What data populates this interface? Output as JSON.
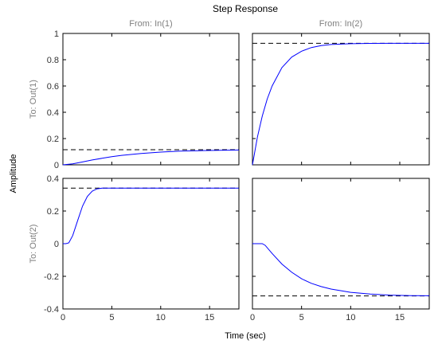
{
  "chart_data": {
    "type": "line",
    "title": "Step Response",
    "xlabel": "Time (sec)",
    "ylabel": "Amplitude",
    "xlim": [
      0,
      18
    ],
    "x_ticks": [
      "0",
      "5",
      "10",
      "15"
    ],
    "input_labels": [
      "From: In(1)",
      "From: In(2)"
    ],
    "output_labels": [
      "To: Out(1)",
      "To: Out(2)"
    ],
    "rows": [
      {
        "ylim": [
          0,
          1
        ],
        "y_ticks": [
          "0",
          "0.2",
          "0.4",
          "0.6",
          "0.8",
          "1"
        ]
      },
      {
        "ylim": [
          -0.4,
          0.4
        ],
        "y_ticks": [
          "-0.4",
          "-0.2",
          "0",
          "0.2",
          "0.4"
        ]
      }
    ],
    "line_color": "#0000ff",
    "steady_state_color": "#000000",
    "grid": false,
    "panels": [
      {
        "row": 0,
        "col": 0,
        "steady_state": 0.115,
        "x": [
          0,
          1,
          2,
          3,
          4,
          5,
          6,
          8,
          10,
          12,
          14,
          16,
          18
        ],
        "y": [
          0,
          0.007,
          0.022,
          0.037,
          0.05,
          0.062,
          0.072,
          0.086,
          0.097,
          0.104,
          0.108,
          0.111,
          0.113
        ]
      },
      {
        "row": 0,
        "col": 1,
        "steady_state": 0.925,
        "x": [
          0,
          0.5,
          1,
          1.5,
          2,
          3,
          4,
          5,
          6,
          7,
          8,
          10,
          12,
          14,
          16,
          18
        ],
        "y": [
          0,
          0.21,
          0.37,
          0.5,
          0.6,
          0.74,
          0.82,
          0.865,
          0.893,
          0.908,
          0.916,
          0.922,
          0.924,
          0.925,
          0.925,
          0.925
        ]
      },
      {
        "row": 1,
        "col": 0,
        "steady_state": 0.34,
        "x": [
          0,
          0.3,
          0.6,
          1,
          1.5,
          2,
          2.5,
          3,
          3.5,
          4,
          5,
          6,
          8,
          10,
          12,
          14,
          16,
          18
        ],
        "y": [
          0,
          0,
          0.005,
          0.05,
          0.14,
          0.23,
          0.29,
          0.322,
          0.336,
          0.34,
          0.34,
          0.34,
          0.34,
          0.34,
          0.34,
          0.34,
          0.34,
          0.34
        ]
      },
      {
        "row": 1,
        "col": 1,
        "steady_state": -0.32,
        "x": [
          0,
          1,
          1.3,
          2,
          3,
          4,
          5,
          6,
          7,
          8,
          10,
          12,
          14,
          16,
          18
        ],
        "y": [
          0,
          0,
          -0.01,
          -0.06,
          -0.125,
          -0.175,
          -0.215,
          -0.243,
          -0.263,
          -0.278,
          -0.298,
          -0.309,
          -0.315,
          -0.318,
          -0.319
        ]
      }
    ]
  }
}
